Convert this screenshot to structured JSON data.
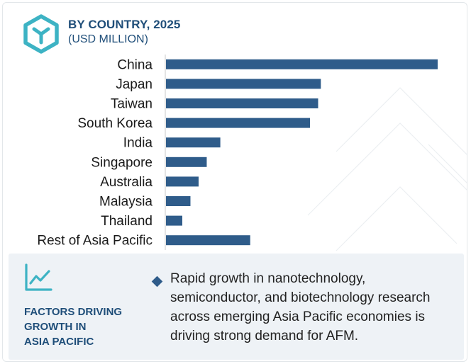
{
  "header": {
    "title": "BY COUNTRY, 2025",
    "subtitle": "(USD MILLION)"
  },
  "icons": {
    "logo": "hexagon-logo-icon",
    "factors": "trend-line-chart-icon",
    "bullet": "diamond-bullet-icon"
  },
  "colors": {
    "bar": "#2f5c8a",
    "heading": "#1f4e79",
    "panel": "#eef2f6"
  },
  "chart_data": {
    "type": "bar",
    "orientation": "horizontal",
    "categories": [
      "China",
      "Japan",
      "Taiwan",
      "South Korea",
      "India",
      "Singapore",
      "Australia",
      "Malaysia",
      "Thailand",
      "Rest of Asia Pacific"
    ],
    "values": [
      100,
      57,
      56,
      53,
      20,
      15,
      12,
      9,
      6,
      31
    ],
    "value_axis_visible": false,
    "grid": false,
    "title": "",
    "xlabel": "",
    "ylabel": "",
    "xlim": [
      0,
      100
    ]
  },
  "factors": {
    "title_lines": [
      "FACTORS DRIVING",
      "GROWTH IN",
      "ASIA PACIFIC"
    ],
    "bullets": [
      "Rapid growth in nanotechnology, semiconductor, and biotechnology research across emerging Asia Pacific economies is driving strong demand for AFM."
    ]
  }
}
